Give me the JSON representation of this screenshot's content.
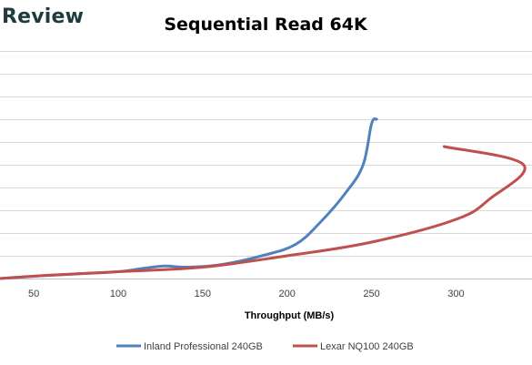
{
  "header": {
    "brand": "Review"
  },
  "colors": {
    "series1": "#4f81bd",
    "series2": "#c0504d",
    "brand": "#1f3b3f"
  },
  "chart_data": {
    "type": "line",
    "title": "Sequential Read 64K",
    "xlabel": "Throughput (MB/s)",
    "ylabel": "",
    "xlim": [
      30,
      345
    ],
    "ylim": [
      0,
      10
    ],
    "xticks": [
      50,
      100,
      150,
      200,
      250,
      300
    ],
    "yticks": [
      0,
      1,
      2,
      3,
      4,
      5,
      6,
      7,
      8,
      9,
      10
    ],
    "grid": true,
    "legend": "bottom",
    "series": [
      {
        "name": "Inland Professional 240GB",
        "x": [
          30,
          50,
          75,
          100,
          115,
          128,
          140,
          160,
          185,
          205,
          220,
          235,
          245,
          250,
          253
        ],
        "y": [
          0.0,
          0.1,
          0.2,
          0.3,
          0.45,
          0.55,
          0.5,
          0.6,
          1.0,
          1.5,
          2.5,
          3.8,
          5.0,
          6.8,
          7.0
        ]
      },
      {
        "name": "Lexar NQ100 240GB",
        "x": [
          30,
          60,
          100,
          150,
          200,
          250,
          300,
          320,
          340,
          293
        ],
        "y": [
          0.0,
          0.15,
          0.3,
          0.5,
          1.0,
          1.6,
          2.6,
          3.5,
          5.0,
          5.8
        ]
      }
    ]
  }
}
